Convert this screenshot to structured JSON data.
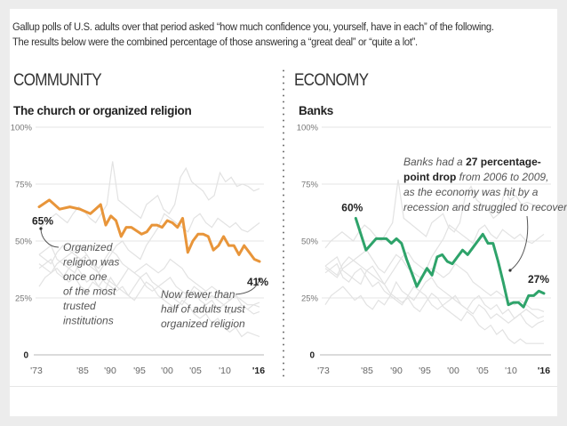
{
  "intro": {
    "line1": "Gallup polls of U.S. adults over that period asked “how much confidence you, yourself, have in each” of the following.",
    "line2": "The results below were the combined percentage of those answering a “great deal” or “quite a lot”."
  },
  "colors": {
    "community": "#e8953a",
    "economy": "#2ea36a",
    "background_lines": "#e2e2e2",
    "grid": "#e4e4e4"
  },
  "chart_data": [
    {
      "type": "line",
      "section": "COMMUNITY",
      "title": "The church or organized religion",
      "xlabel": "",
      "ylabel": "",
      "ylim": [
        0,
        100
      ],
      "xlim": [
        1973,
        2016
      ],
      "yticks": [
        {
          "value": 100,
          "label": "100%"
        },
        {
          "value": 75,
          "label": "75%"
        },
        {
          "value": 50,
          "label": "50%"
        },
        {
          "value": 25,
          "label": "25%"
        },
        {
          "value": 0,
          "label": "0"
        }
      ],
      "xticks": [
        {
          "value": 1973,
          "label": "'73"
        },
        {
          "value": 1985,
          "label": "'85"
        },
        {
          "value": 1990,
          "label": "'90"
        },
        {
          "value": 1995,
          "label": "'95"
        },
        {
          "value": 2000,
          "label": "'00"
        },
        {
          "value": 2005,
          "label": "'05"
        },
        {
          "value": 2010,
          "label": "'10"
        },
        {
          "value": 2016,
          "label": "'16",
          "bold": true
        }
      ],
      "grid": true,
      "series": [
        {
          "name": "The church or organized religion",
          "x": [
            1973,
            1975,
            1977,
            1979,
            1981,
            1983,
            1984,
            1985,
            1986,
            1987,
            1988,
            1989,
            1990,
            1991,
            1993,
            1994,
            1995,
            1996,
            1997,
            1998,
            1999,
            2000,
            2001,
            2002,
            2003,
            2004,
            2005,
            2006,
            2007,
            2008,
            2009,
            2010,
            2011,
            2012,
            2013,
            2014,
            2015,
            2016
          ],
          "values": [
            65,
            68,
            64,
            65,
            64,
            62,
            64,
            66,
            57,
            61,
            59,
            52,
            56,
            56,
            53,
            54,
            57,
            57,
            56,
            59,
            58,
            56,
            60,
            45,
            50,
            53,
            53,
            52,
            46,
            48,
            52,
            48,
            48,
            44,
            48,
            45,
            42,
            41
          ]
        }
      ],
      "annotations": [
        {
          "label": "65%",
          "type": "start-value"
        },
        {
          "label": "41%",
          "type": "end-value"
        },
        {
          "lines": [
            "Organized",
            "religion was",
            "once one",
            "of the most",
            "trusted",
            "institutions"
          ]
        },
        {
          "lines": [
            "Now fewer than",
            "half of adults trust",
            "organized religion"
          ]
        }
      ]
    },
    {
      "type": "line",
      "section": "ECONOMY",
      "title": "Banks",
      "xlabel": "",
      "ylabel": "",
      "ylim": [
        0,
        100
      ],
      "xlim": [
        1973,
        2016
      ],
      "yticks": [
        {
          "value": 100,
          "label": "100%"
        },
        {
          "value": 75,
          "label": "75%"
        },
        {
          "value": 50,
          "label": "50%"
        },
        {
          "value": 25,
          "label": "25%"
        },
        {
          "value": 0,
          "label": "0"
        }
      ],
      "xticks": [
        {
          "value": 1973,
          "label": "'73"
        },
        {
          "value": 1985,
          "label": "'85"
        },
        {
          "value": 1990,
          "label": "'90"
        },
        {
          "value": 1995,
          "label": "'95"
        },
        {
          "value": 2000,
          "label": "'00"
        },
        {
          "value": 2005,
          "label": "'05"
        },
        {
          "value": 2010,
          "label": "'10"
        },
        {
          "value": 2016,
          "label": "'16",
          "bold": true
        }
      ],
      "grid": true,
      "series": [
        {
          "name": "Banks",
          "x": [
            1979,
            1981,
            1983,
            1984,
            1985,
            1986,
            1987,
            1988,
            1989,
            1990,
            1991,
            1993,
            1994,
            1995,
            1996,
            1997,
            1998,
            1999,
            2000,
            2001,
            2002,
            2003,
            2004,
            2005,
            2006,
            2007,
            2008,
            2009,
            2010,
            2011,
            2012,
            2013,
            2014,
            2015,
            2016
          ],
          "values": [
            60,
            46,
            51,
            51,
            51,
            49,
            51,
            49,
            42,
            36,
            30,
            38,
            35,
            43,
            44,
            41,
            40,
            43,
            46,
            44,
            47,
            50,
            53,
            49,
            49,
            41,
            32,
            22,
            23,
            23,
            21,
            26,
            26,
            28,
            27
          ]
        }
      ],
      "annotations": [
        {
          "label": "60%",
          "type": "start-value"
        },
        {
          "label": "27%",
          "type": "end-value"
        },
        {
          "rich_lines": [
            [
              {
                "t": "Banks had a ",
                "b": false
              },
              {
                "t": "27 percentage-",
                "b": true
              }
            ],
            [
              {
                "t": "point drop",
                "b": true
              },
              {
                "t": " from 2006 to 2009,",
                "b": false
              }
            ],
            [
              {
                "t": "as the economy was hit by a",
                "b": false
              }
            ],
            [
              {
                "t": "recession and struggled to recover",
                "b": false
              }
            ]
          ]
        }
      ]
    }
  ],
  "background_series": [
    [
      55,
      58,
      60,
      62,
      60,
      58,
      62,
      65,
      63,
      60,
      58,
      62,
      66,
      85,
      68,
      66,
      64,
      62,
      60,
      66,
      68,
      70,
      64,
      62,
      66,
      78,
      82,
      76,
      74,
      72,
      68,
      70,
      80,
      76,
      78,
      74,
      75,
      74,
      72,
      73
    ],
    [
      44,
      42,
      40,
      45,
      48,
      46,
      44,
      42,
      40,
      38,
      36,
      40,
      44,
      48,
      50,
      46,
      44,
      42,
      48,
      52,
      56,
      62,
      60,
      58,
      56,
      54,
      60,
      62,
      58,
      56,
      60,
      58,
      56,
      58,
      55,
      54,
      56,
      58
    ],
    [
      38,
      40,
      42,
      36,
      34,
      38,
      40,
      36,
      32,
      34,
      30,
      28,
      34,
      30,
      28,
      26,
      30,
      34,
      36,
      32,
      30,
      28,
      26,
      24,
      22,
      26,
      28,
      24,
      22,
      24,
      20,
      22,
      18,
      20,
      22,
      20,
      18,
      19
    ],
    [
      30,
      34,
      36,
      38,
      35,
      32,
      34,
      30,
      28,
      32,
      30,
      34,
      32,
      30,
      34,
      38,
      36,
      34,
      30,
      28,
      30,
      32,
      34,
      30,
      28,
      26,
      30,
      28,
      24,
      26,
      24,
      22,
      24,
      26,
      22,
      20,
      22,
      23
    ],
    [
      44,
      46,
      48,
      42,
      40,
      38,
      36,
      42,
      44,
      40,
      36,
      32,
      30,
      28,
      30,
      26,
      24,
      28,
      32,
      30,
      26,
      24,
      22,
      20,
      24,
      22,
      18,
      16,
      18,
      14,
      16,
      12,
      10,
      12,
      8,
      10,
      9,
      8
    ],
    [
      40,
      38,
      36,
      40,
      42,
      44,
      46,
      48,
      44,
      40,
      38,
      42,
      46,
      44,
      40,
      38,
      36,
      38,
      40,
      38,
      36,
      38,
      42,
      40,
      38,
      34,
      32,
      30,
      28,
      30,
      28,
      26,
      24,
      26,
      24,
      22,
      22,
      21
    ]
  ]
}
